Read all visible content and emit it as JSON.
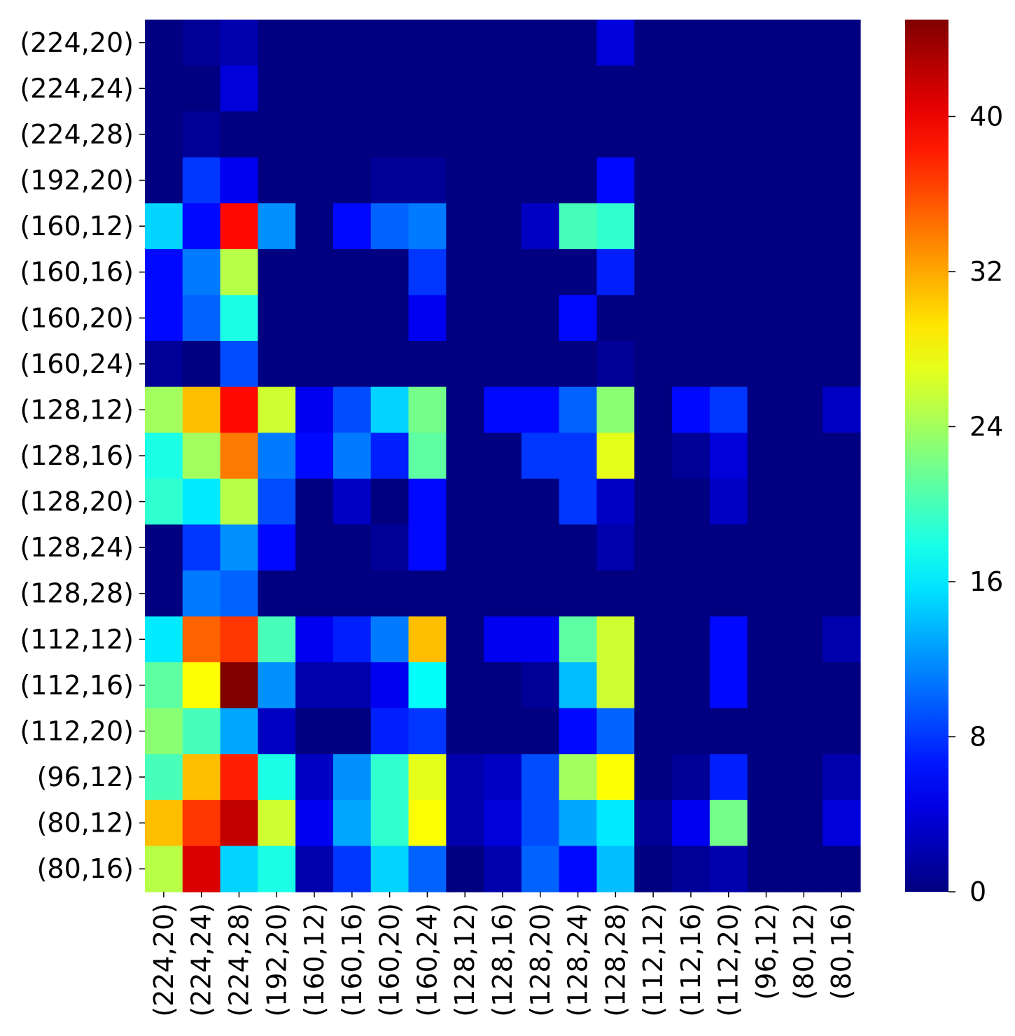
{
  "chart_data": {
    "type": "heatmap",
    "colormap": "jet",
    "x_categories": [
      "(224,20)",
      "(224,24)",
      "(224,28)",
      "(192,20)",
      "(160,12)",
      "(160,16)",
      "(160,20)",
      "(160,24)",
      "(128,12)",
      "(128,16)",
      "(128,20)",
      "(128,24)",
      "(128,28)",
      "(112,12)",
      "(112,16)",
      "(112,20)",
      "(96,12)",
      "(80,12)",
      "(80,16)"
    ],
    "y_categories": [
      "(224,20)",
      "(224,24)",
      "(224,28)",
      "(192,20)",
      "(160,12)",
      "(160,16)",
      "(160,20)",
      "(160,24)",
      "(128,12)",
      "(128,16)",
      "(128,20)",
      "(128,24)",
      "(128,28)",
      "(112,12)",
      "(112,16)",
      "(112,20)",
      "(96,12)",
      "(80,12)",
      "(80,16)"
    ],
    "values": [
      [
        0,
        1,
        2,
        0,
        0,
        0,
        0,
        0,
        0,
        0,
        0,
        0,
        4,
        0,
        0,
        0,
        0,
        0,
        0
      ],
      [
        0,
        0,
        4,
        0,
        0,
        0,
        0,
        0,
        0,
        0,
        0,
        0,
        0,
        0,
        0,
        0,
        0,
        0,
        0
      ],
      [
        0,
        1,
        0,
        0,
        0,
        0,
        0,
        0,
        0,
        0,
        0,
        0,
        0,
        0,
        0,
        0,
        0,
        0,
        0
      ],
      [
        0,
        8,
        5,
        0,
        0,
        0,
        1,
        1,
        0,
        0,
        0,
        0,
        6,
        0,
        0,
        0,
        0,
        0,
        0
      ],
      [
        15,
        6,
        39,
        12,
        0,
        6,
        10,
        11,
        0,
        0,
        3,
        20,
        19,
        0,
        0,
        0,
        0,
        0,
        0
      ],
      [
        6,
        11,
        25,
        0,
        0,
        0,
        0,
        8,
        0,
        0,
        0,
        0,
        7,
        0,
        0,
        0,
        0,
        0,
        0
      ],
      [
        6,
        10,
        18,
        0,
        0,
        0,
        0,
        5,
        0,
        0,
        0,
        6,
        0,
        0,
        0,
        0,
        0,
        0,
        0
      ],
      [
        1,
        0,
        9,
        0,
        0,
        0,
        0,
        0,
        0,
        0,
        0,
        0,
        1,
        0,
        0,
        0,
        0,
        0,
        0
      ],
      [
        24,
        31,
        39,
        26,
        5,
        9,
        15,
        22,
        0,
        6,
        6,
        10,
        23,
        0,
        6,
        8,
        0,
        0,
        3
      ],
      [
        18,
        24,
        34,
        11,
        6,
        11,
        7,
        21,
        0,
        0,
        8,
        8,
        27,
        0,
        1,
        4,
        0,
        0,
        0
      ],
      [
        19,
        16,
        25,
        9,
        0,
        3,
        0,
        6,
        0,
        0,
        0,
        8,
        3,
        0,
        0,
        3,
        0,
        0,
        0
      ],
      [
        0,
        8,
        12,
        6,
        0,
        0,
        1,
        6,
        0,
        0,
        0,
        0,
        2,
        0,
        0,
        0,
        0,
        0,
        0
      ],
      [
        0,
        11,
        10,
        0,
        0,
        0,
        0,
        0,
        0,
        0,
        0,
        0,
        0,
        0,
        0,
        0,
        0,
        0,
        0
      ],
      [
        16,
        35,
        37,
        20,
        5,
        7,
        11,
        31,
        0,
        5,
        5,
        21,
        26,
        0,
        0,
        6,
        0,
        0,
        2
      ],
      [
        21,
        28,
        45,
        12,
        2,
        2,
        5,
        17,
        0,
        0,
        1,
        14,
        26,
        0,
        0,
        6,
        0,
        0,
        0
      ],
      [
        23,
        20,
        13,
        3,
        0,
        0,
        7,
        8,
        0,
        0,
        0,
        6,
        10,
        0,
        0,
        0,
        0,
        0,
        0
      ],
      [
        20,
        31,
        38,
        18,
        3,
        12,
        19,
        27,
        2,
        3,
        9,
        24,
        28,
        0,
        1,
        7,
        0,
        0,
        2
      ],
      [
        31,
        37,
        42,
        26,
        5,
        13,
        19,
        28,
        2,
        4,
        9,
        13,
        16,
        1,
        5,
        22,
        0,
        0,
        4
      ],
      [
        25,
        41,
        15,
        18,
        2,
        8,
        15,
        10,
        0,
        2,
        10,
        6,
        14,
        0,
        1,
        2,
        0,
        0,
        0
      ]
    ],
    "colorbar": {
      "min": 0,
      "max": 45,
      "ticks": [
        0,
        8,
        16,
        24,
        32,
        40
      ]
    }
  }
}
